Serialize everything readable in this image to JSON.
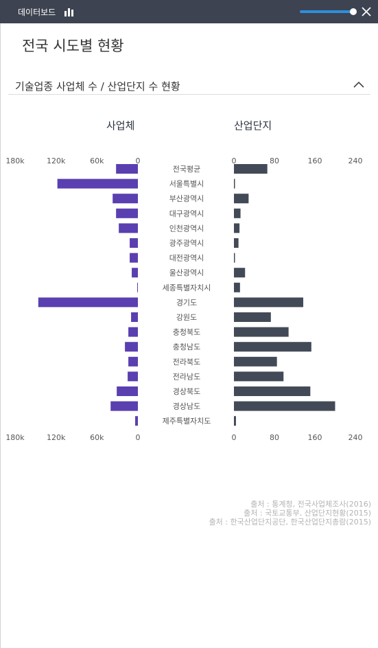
{
  "header": {
    "title": "데이터보드",
    "close_label": "✕"
  },
  "page": {
    "title": "전국 시도별 현황"
  },
  "section": {
    "title": "기술업종 사업체 수 / 산업단지 수 현황"
  },
  "chart_data": {
    "type": "bar",
    "orientation": "horizontal",
    "categories": [
      "전국평균",
      "서울특별시",
      "부산광역시",
      "대구광역시",
      "인천광역시",
      "광주광역시",
      "대전광역시",
      "울산광역시",
      "세종특별자치시",
      "경기도",
      "강원도",
      "충청북도",
      "충청남도",
      "전라북도",
      "전라남도",
      "경상북도",
      "경상남도",
      "제주특별자치도"
    ],
    "left": {
      "title": "사업체",
      "ticks": [
        "180k",
        "120k",
        "60k",
        "0"
      ],
      "tick_values": [
        180000,
        120000,
        60000,
        0
      ],
      "xlim": [
        0,
        180000
      ],
      "color": "#5a3fb0",
      "values": [
        32000,
        118000,
        37000,
        32000,
        28000,
        12000,
        12000,
        9000,
        1000,
        146000,
        10000,
        14000,
        19000,
        14000,
        15000,
        31000,
        40000,
        4000
      ]
    },
    "right": {
      "title": "산업단지",
      "ticks": [
        "0",
        "80",
        "160",
        "240"
      ],
      "tick_values": [
        0,
        80,
        160,
        240
      ],
      "xlim": [
        0,
        240
      ],
      "color": "#434a57",
      "values": [
        66,
        1,
        29,
        13,
        11,
        9,
        2,
        22,
        12,
        137,
        73,
        108,
        153,
        85,
        98,
        151,
        200,
        4
      ]
    }
  },
  "sources": [
    "출처 : 통계청, 전국사업체조사(2016)",
    "출처 : 국토교통부, 산업단지현황(2015)",
    "출처 : 한국산업단지공단, 한국산업단지총람(2015)"
  ],
  "colors": {
    "header_bg": "#3d4350",
    "slider": "#2e8fdc"
  }
}
